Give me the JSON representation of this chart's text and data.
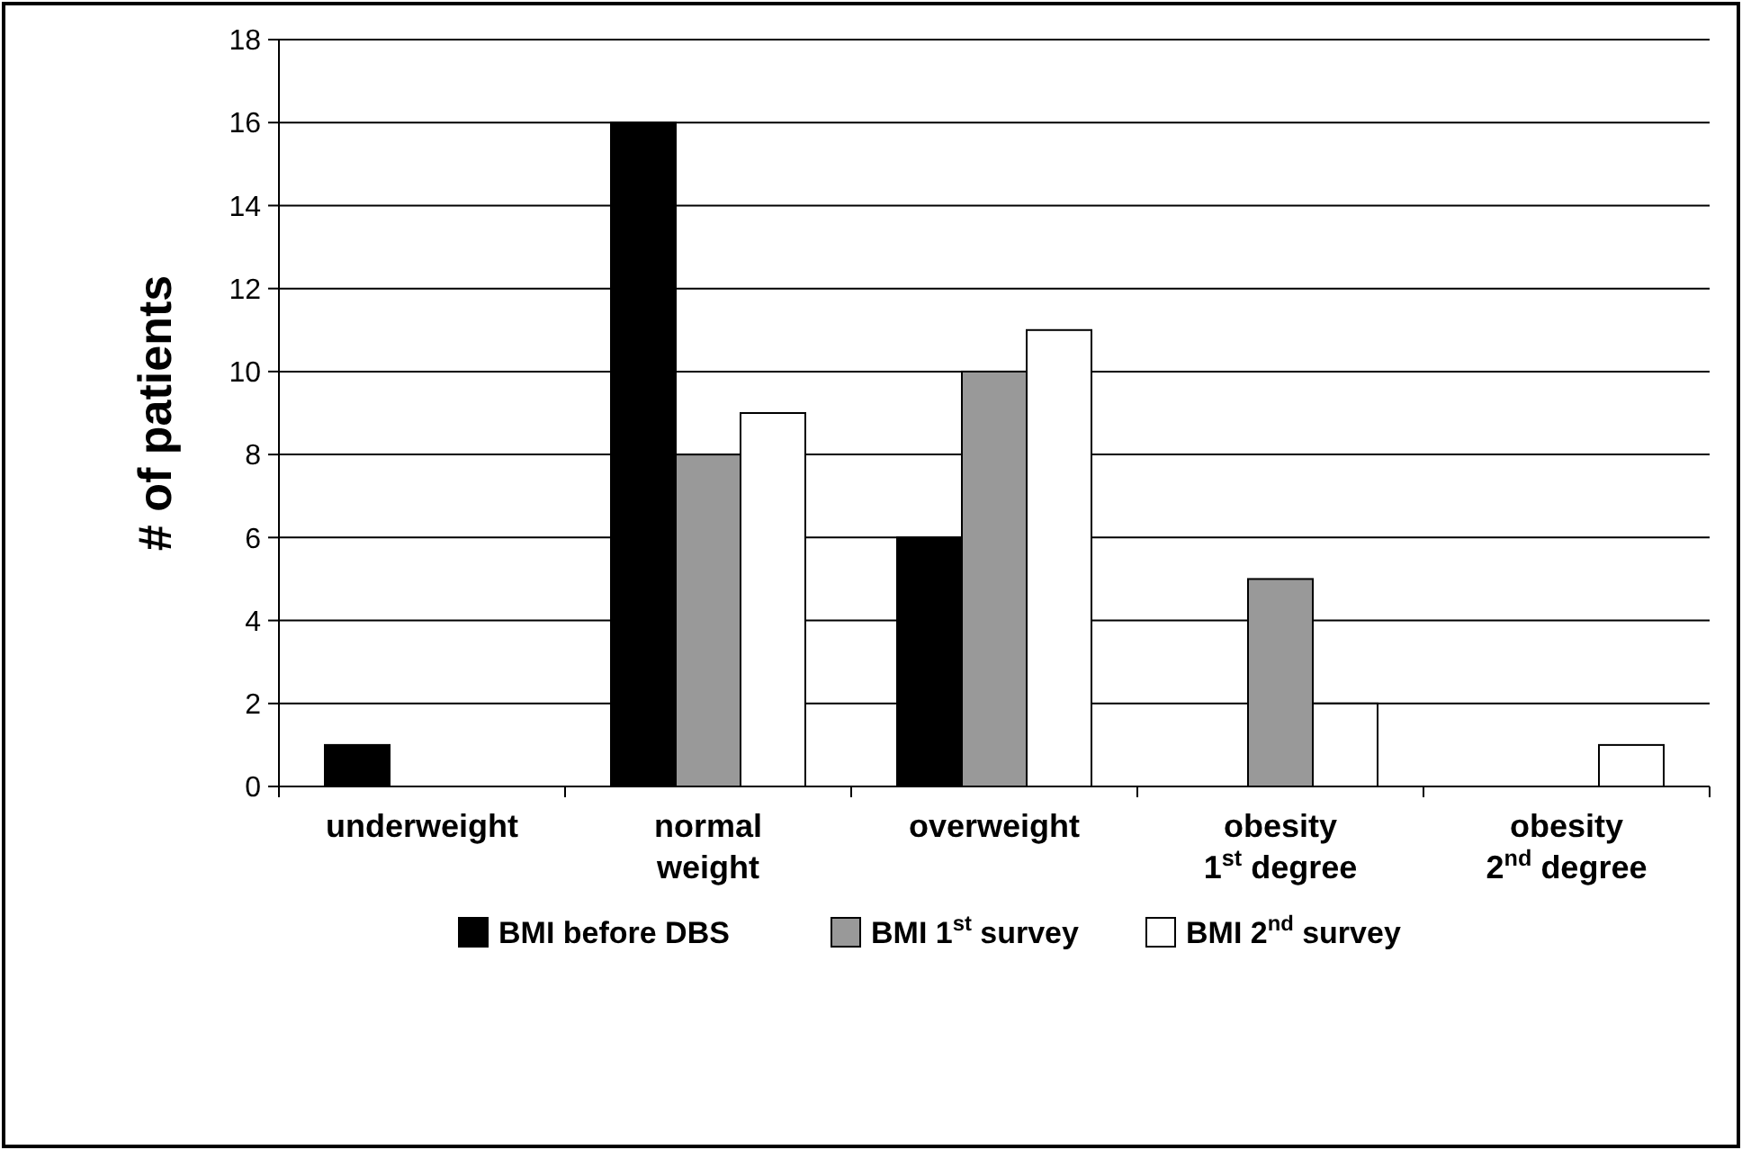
{
  "chart_data": {
    "type": "bar",
    "ylabel": "# of patients",
    "categories": [
      "underweight",
      "normal\nweight",
      "overweight",
      "obesity\n1$^{st}$ degree",
      "obesity\n2$^{nd}$ degree"
    ],
    "series": [
      {
        "name": "BMI before DBS",
        "color": "#000000",
        "values": [
          1,
          16,
          6,
          0,
          0
        ]
      },
      {
        "name": "BMI 1$^{st}$ survey",
        "color": "#999999",
        "values": [
          0,
          8,
          10,
          5,
          0
        ]
      },
      {
        "name": "BMI 2$^{nd}$ survey",
        "color": "#ffffff",
        "values": [
          0,
          9,
          11,
          2,
          1
        ]
      }
    ],
    "ylim": [
      0,
      18
    ],
    "yticks": [
      0,
      2,
      4,
      6,
      8,
      10,
      12,
      14,
      16,
      18
    ],
    "grid": "y",
    "legend": "bottom"
  }
}
